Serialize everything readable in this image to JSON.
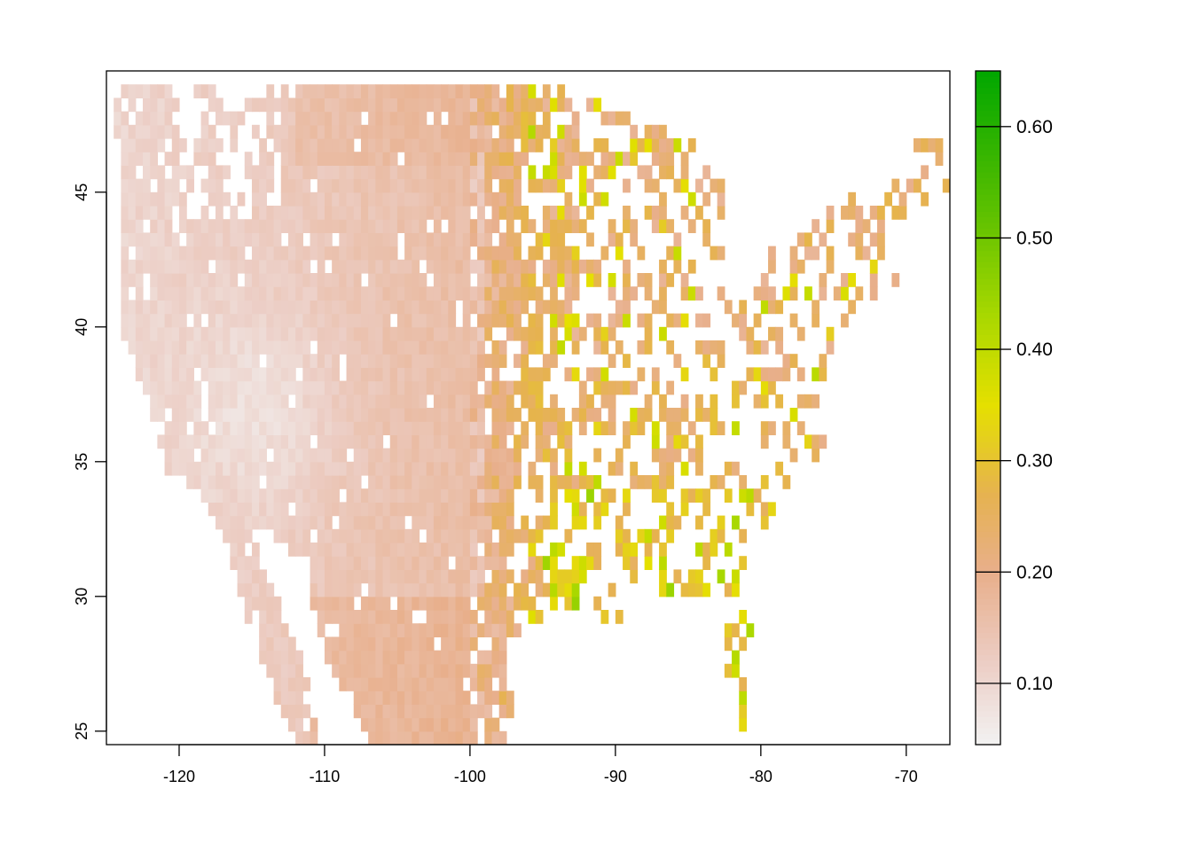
{
  "chart_data": {
    "type": "heatmap",
    "subtype": "raster-map",
    "region": "contiguous United States",
    "x_range": [
      -125,
      -67
    ],
    "y_range": [
      24.5,
      49.5
    ],
    "x_ticks": [
      -120,
      -110,
      -100,
      -90,
      -80,
      -70
    ],
    "x_tick_labels": [
      "-120",
      "-110",
      "-100",
      "-90",
      "-80",
      "-70"
    ],
    "y_ticks": [
      25,
      30,
      35,
      40,
      45
    ],
    "y_tick_labels": [
      "25",
      "30",
      "35",
      "40",
      "45"
    ],
    "legend": {
      "position": "right",
      "min": 0.045,
      "max": 0.65,
      "ticks": [
        0.1,
        0.2,
        0.3,
        0.4,
        0.5,
        0.6
      ],
      "tick_labels": [
        "0.10",
        "0.20",
        "0.30",
        "0.40",
        "0.50",
        "0.60"
      ],
      "colors": [
        {
          "value": 0.045,
          "color": "#f2f2f2"
        },
        {
          "value": 0.12,
          "color": "#eccdc4"
        },
        {
          "value": 0.2,
          "color": "#e8af8b"
        },
        {
          "value": 0.27,
          "color": "#e6b250"
        },
        {
          "value": 0.35,
          "color": "#e5e000"
        },
        {
          "value": 0.43,
          "color": "#a9d800"
        },
        {
          "value": 0.52,
          "color": "#5fc100"
        },
        {
          "value": 0.65,
          "color": "#00a600"
        }
      ]
    },
    "grid": false,
    "title": "",
    "xlabel": "",
    "ylabel": ""
  }
}
